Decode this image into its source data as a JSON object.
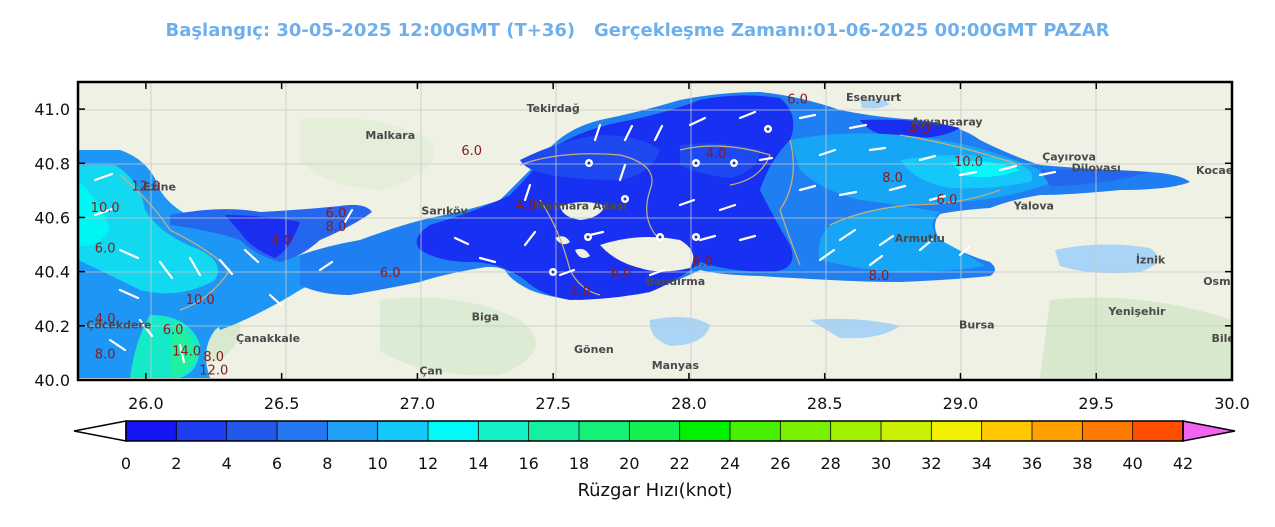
{
  "title": "Başlangıç: 30-05-2025 12:00GMT (T+36)   Gerçekleşme Zamanı:01-06-2025 00:00GMT PAZAR",
  "colors": {
    "title": "#6fb0ec",
    "land": "#eef1e4",
    "sea_light": "#1e90ff",
    "frame": "#000000"
  },
  "chart_data": {
    "type": "heatmap",
    "title": "Başlangıç: 30-05-2025 12:00GMT (T+36)   Gerçekleşme Zamanı:01-06-2025 00:00GMT PAZAR",
    "xlabel": "",
    "ylabel": "",
    "xlim": [
      25.75,
      30.0
    ],
    "ylim": [
      40.0,
      41.1
    ],
    "x_ticks": [
      "26.0",
      "26.5",
      "27.0",
      "27.5",
      "28.0",
      "28.5",
      "29.0",
      "29.5",
      "30.0"
    ],
    "y_ticks": [
      "40.0",
      "40.2",
      "40.4",
      "40.6",
      "40.8",
      "41.0"
    ],
    "grid": true,
    "colorbar": {
      "label": "Rüzgar Hızı(knot)",
      "ticks": [
        "0",
        "2",
        "4",
        "6",
        "8",
        "10",
        "12",
        "14",
        "16",
        "18",
        "20",
        "22",
        "24",
        "26",
        "28",
        "30",
        "32",
        "34",
        "36",
        "38",
        "40",
        "42"
      ],
      "colors": [
        "#1414f5",
        "#1e3cf0",
        "#2359eb",
        "#2478f0",
        "#1ea0f5",
        "#14c8fa",
        "#00fafa",
        "#14f0c8",
        "#14f0a0",
        "#14f078",
        "#14f050",
        "#00f000",
        "#46f000",
        "#78f000",
        "#a0f000",
        "#c8f000",
        "#f0f000",
        "#ffc800",
        "#ffa000",
        "#ff7800",
        "#ff5000",
        "#ff1e00",
        "#ff0000"
      ],
      "extend_low": "#ffffff",
      "extend_high": "#f064f0"
    },
    "contour_labels": [
      {
        "text": "6.0",
        "x": 28.4,
        "y": 41.02
      },
      {
        "text": "4.0",
        "x": 28.85,
        "y": 40.91
      },
      {
        "text": "6.0",
        "x": 27.2,
        "y": 40.83
      },
      {
        "text": "4.0",
        "x": 28.1,
        "y": 40.82
      },
      {
        "text": "10.0",
        "x": 29.03,
        "y": 40.79
      },
      {
        "text": "8.0",
        "x": 28.75,
        "y": 40.73
      },
      {
        "text": "12.0",
        "x": 26.0,
        "y": 40.7
      },
      {
        "text": "10.0",
        "x": 25.85,
        "y": 40.62
      },
      {
        "text": "6.0",
        "x": 26.7,
        "y": 40.6
      },
      {
        "text": "8.0",
        "x": 26.7,
        "y": 40.55
      },
      {
        "text": "6.0",
        "x": 28.95,
        "y": 40.65
      },
      {
        "text": "4.0",
        "x": 27.4,
        "y": 40.63
      },
      {
        "text": "4.0",
        "x": 26.5,
        "y": 40.5
      },
      {
        "text": "6.0",
        "x": 25.85,
        "y": 40.47
      },
      {
        "text": "6.0",
        "x": 26.9,
        "y": 40.38
      },
      {
        "text": "6.0",
        "x": 27.75,
        "y": 40.38
      },
      {
        "text": "6.0",
        "x": 28.05,
        "y": 40.42
      },
      {
        "text": "8.0",
        "x": 28.7,
        "y": 40.37
      },
      {
        "text": "10.0",
        "x": 26.2,
        "y": 40.28
      },
      {
        "text": "4.0",
        "x": 27.6,
        "y": 40.31
      },
      {
        "text": "4.0",
        "x": 25.85,
        "y": 40.21
      },
      {
        "text": "6.0",
        "x": 26.1,
        "y": 40.17
      },
      {
        "text": "8.0",
        "x": 25.85,
        "y": 40.08
      },
      {
        "text": "8.0",
        "x": 26.25,
        "y": 40.07
      },
      {
        "text": "12.0",
        "x": 26.25,
        "y": 40.02
      },
      {
        "text": "14.0",
        "x": 26.15,
        "y": 40.09
      }
    ],
    "place_labels": [
      {
        "text": "Tekirdağ",
        "x": 27.5,
        "y": 40.99
      },
      {
        "text": "Malkara",
        "x": 26.9,
        "y": 40.89
      },
      {
        "text": "Esenyurt",
        "x": 28.68,
        "y": 41.03
      },
      {
        "text": "Ayvansaray",
        "x": 28.95,
        "y": 40.94
      },
      {
        "text": "Çayırova",
        "x": 29.4,
        "y": 40.81
      },
      {
        "text": "Dilovası",
        "x": 29.5,
        "y": 40.77
      },
      {
        "text": "Kocaeli",
        "x": 29.95,
        "y": 40.76
      },
      {
        "text": "Yalova",
        "x": 29.27,
        "y": 40.63
      },
      {
        "text": "Mármara Adası",
        "x": 27.6,
        "y": 40.63
      },
      {
        "text": "Armutlu",
        "x": 28.85,
        "y": 40.51
      },
      {
        "text": "İznik",
        "x": 29.7,
        "y": 40.43
      },
      {
        "text": "Bandırma",
        "x": 27.95,
        "y": 40.35
      },
      {
        "text": "Çanakkale",
        "x": 26.45,
        "y": 40.14
      },
      {
        "text": "Çöcekdere",
        "x": 25.9,
        "y": 40.19
      },
      {
        "text": "Biga",
        "x": 27.25,
        "y": 40.22
      },
      {
        "text": "Gönen",
        "x": 27.65,
        "y": 40.1
      },
      {
        "text": "Manyas",
        "x": 27.95,
        "y": 40.04
      },
      {
        "text": "Çan",
        "x": 27.05,
        "y": 40.02
      },
      {
        "text": "Bursa",
        "x": 29.06,
        "y": 40.19
      },
      {
        "text": "Yenişehir",
        "x": 29.65,
        "y": 40.24
      },
      {
        "text": "Bilecik",
        "x": 30.0,
        "y": 40.14
      },
      {
        "text": "Osmaneli",
        "x": 30.0,
        "y": 40.35
      },
      {
        "text": "Sarıköy",
        "x": 27.1,
        "y": 40.61
      },
      {
        "text": "Ezine",
        "x": 26.05,
        "y": 40.7
      }
    ]
  }
}
